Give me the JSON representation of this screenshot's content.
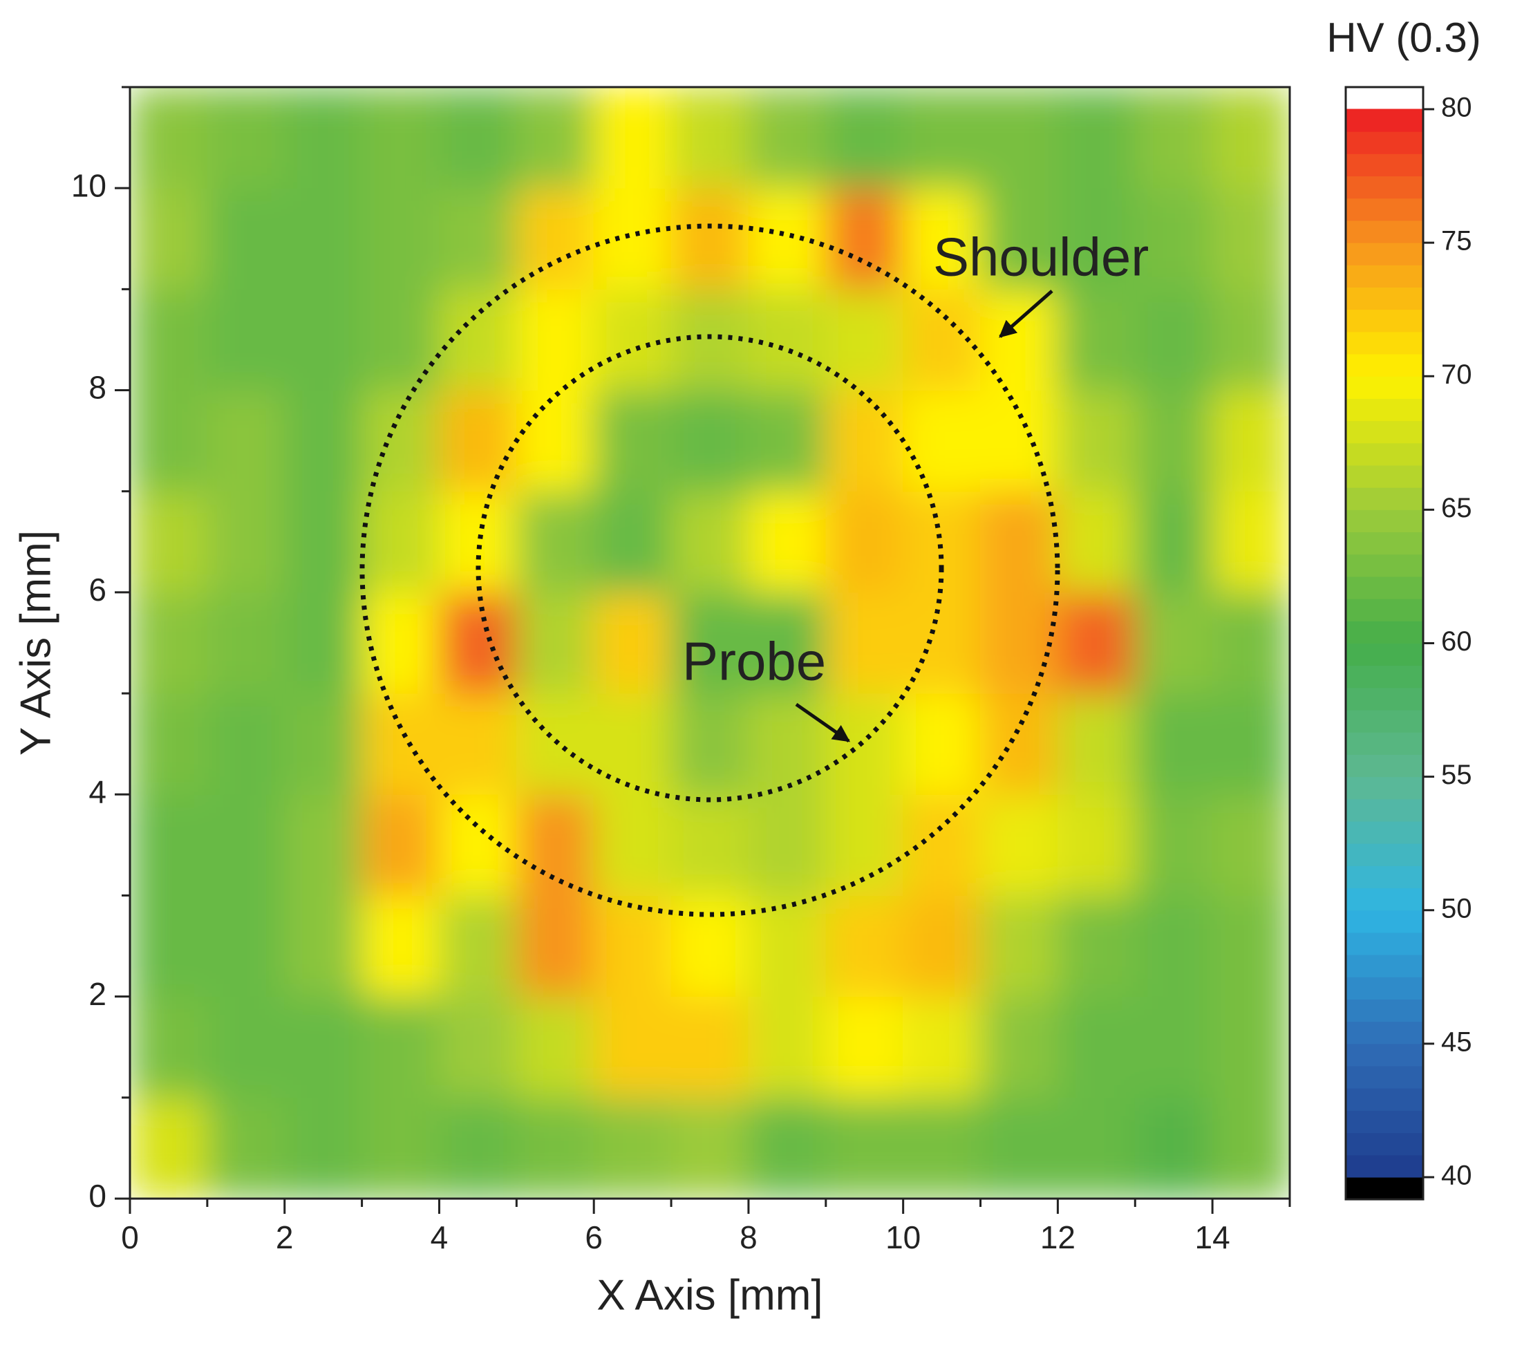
{
  "chart_data": {
    "type": "heatmap",
    "title": "HV (0.3)",
    "x_label": "X Axis [mm]",
    "y_label": "Y Axis [mm]",
    "annotations": [
      "Shoulder",
      "Probe"
    ],
    "xlim": [
      0,
      15
    ],
    "ylim": [
      0,
      11
    ],
    "xticks": [
      0,
      2,
      4,
      6,
      8,
      10,
      12,
      14
    ],
    "yticks": [
      0,
      2,
      4,
      6,
      8,
      10
    ],
    "xticks_minor": [
      1,
      3,
      5,
      7,
      9,
      11,
      13,
      15
    ],
    "yticks_minor": [
      1,
      3,
      5,
      7,
      9,
      11
    ],
    "clim": [
      40,
      80
    ],
    "cticks": [
      40,
      45,
      50,
      55,
      60,
      65,
      70,
      75,
      80
    ],
    "colormap": [
      "#1d3b8c",
      "#2f6db6",
      "#2fb5e3",
      "#5db892",
      "#45ae4a",
      "#9ccb3b",
      "#fff200",
      "#f7941d",
      "#ec1c24"
    ],
    "x": [
      0.5,
      1.5,
      2.5,
      3.5,
      4.5,
      5.5,
      6.5,
      7.5,
      8.5,
      9.5,
      10.5,
      11.5,
      12.5,
      13.5,
      14.5
    ],
    "y": [
      0.5,
      1.5,
      2.5,
      3.5,
      4.5,
      5.5,
      6.5,
      7.5,
      8.5,
      9.5,
      10.5
    ],
    "values": [
      [
        68,
        63,
        62,
        63,
        62,
        63,
        64,
        65,
        62,
        63,
        63,
        62,
        62,
        61,
        63
      ],
      [
        63,
        62,
        62,
        63,
        65,
        67,
        72,
        72,
        68,
        70,
        69,
        64,
        62,
        62,
        63
      ],
      [
        62,
        62,
        64,
        70,
        66,
        75,
        72,
        70,
        68,
        72,
        73,
        66,
        63,
        62,
        63
      ],
      [
        62,
        62,
        64,
        74,
        70,
        75,
        68,
        67,
        66,
        68,
        72,
        69,
        68,
        63,
        64
      ],
      [
        63,
        62,
        63,
        72,
        72,
        68,
        68,
        64,
        66,
        68,
        70,
        73,
        67,
        62,
        62
      ],
      [
        64,
        63,
        62,
        70,
        77,
        66,
        72,
        62,
        62,
        72,
        72,
        74,
        77,
        64,
        63
      ],
      [
        66,
        64,
        62,
        67,
        70,
        64,
        62,
        66,
        70,
        73,
        72,
        74,
        68,
        62,
        69
      ],
      [
        63,
        64,
        62,
        66,
        73,
        70,
        63,
        62,
        63,
        72,
        70,
        70,
        66,
        63,
        68
      ],
      [
        63,
        62,
        62,
        63,
        67,
        70,
        68,
        66,
        67,
        68,
        72,
        70,
        63,
        62,
        64
      ],
      [
        65,
        62,
        62,
        63,
        64,
        72,
        70,
        73,
        70,
        76,
        70,
        63,
        62,
        63,
        65
      ],
      [
        64,
        63,
        62,
        63,
        62,
        64,
        70,
        67,
        64,
        62,
        63,
        63,
        62,
        64,
        66
      ]
    ]
  }
}
